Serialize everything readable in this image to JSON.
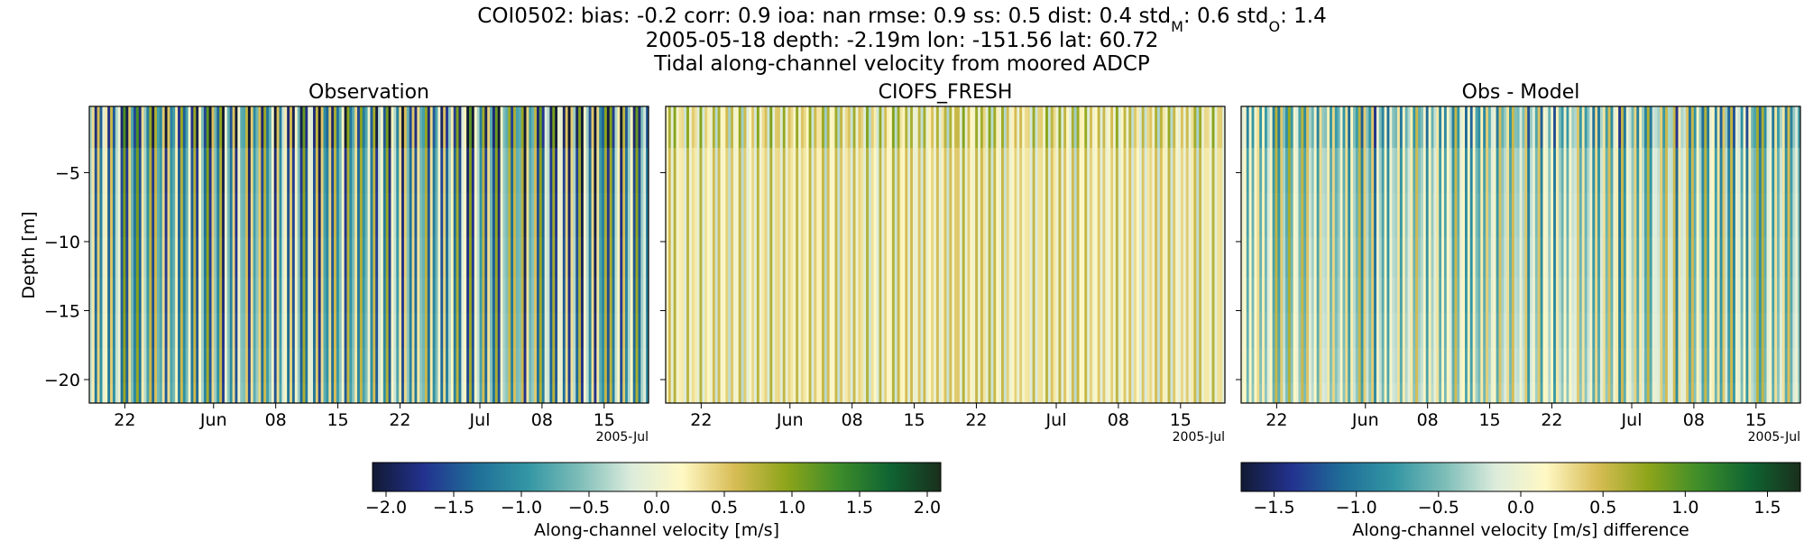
{
  "header": {
    "line1_prefix": "COI0502: bias: -0.2  corr: 0.9  ioa: nan  rmse: 0.9  ss: 0.5  dist: 0.4  std",
    "line1_sub_m": "M",
    "line1_mid": ": 0.6  std",
    "line1_sub_o": "O",
    "line1_end": ": 1.4",
    "line2": "2005-05-18 depth: -2.19m lon: -151.56 lat: 60.72",
    "line3": "Tidal along-channel velocity from moored ADCP"
  },
  "chart_data": [
    {
      "type": "heatmap",
      "title": "Observation",
      "ylabel": "Depth [m]",
      "xlabel": "",
      "x_range": [
        "2005-05-18",
        "2005-07-20"
      ],
      "y_range": [
        -21.7,
        -0.2
      ],
      "x_ticks": [
        "22",
        "Jun",
        "08",
        "15",
        "22",
        "Jul",
        "08",
        "15"
      ],
      "x_offset_label": "2005-Jul",
      "y_ticks": [
        "-5",
        "-10",
        "-15",
        "-20"
      ],
      "colormap": "delta",
      "vmin": -2.1,
      "vmax": 2.1,
      "colorbar": "colorbar-1"
    },
    {
      "type": "heatmap",
      "title": "CIOFS_FRESH",
      "ylabel": "",
      "xlabel": "",
      "x_range": [
        "2005-05-18",
        "2005-07-20"
      ],
      "y_range": [
        -21.7,
        -0.2
      ],
      "x_ticks": [
        "22",
        "Jun",
        "08",
        "15",
        "22",
        "Jul",
        "08",
        "15"
      ],
      "x_offset_label": "2005-Jul",
      "y_ticks": [],
      "colormap": "delta",
      "vmin": -2.1,
      "vmax": 2.1,
      "colorbar": "colorbar-1"
    },
    {
      "type": "heatmap",
      "title": "Obs - Model",
      "ylabel": "",
      "xlabel": "",
      "x_range": [
        "2005-05-18",
        "2005-07-20"
      ],
      "y_range": [
        -21.7,
        -0.2
      ],
      "x_ticks": [
        "22",
        "Jun",
        "08",
        "15",
        "22",
        "Jul",
        "08",
        "15"
      ],
      "x_offset_label": "2005-Jul",
      "y_ticks": [],
      "colormap": "delta",
      "vmin": -1.7,
      "vmax": 1.7,
      "colorbar": "colorbar-2"
    }
  ],
  "colorbars": [
    {
      "label": "Along-channel velocity [m/s]",
      "vmin": -2.1,
      "vmax": 2.1,
      "ticks": [
        -2.0,
        -1.5,
        -1.0,
        -0.5,
        0.0,
        0.5,
        1.0,
        1.5,
        2.0
      ],
      "tick_labels": [
        "−2.0",
        "−1.5",
        "−1.0",
        "−0.5",
        "0.0",
        "0.5",
        "1.0",
        "1.5",
        "2.0"
      ]
    },
    {
      "label": "Along-channel velocity [m/s] difference",
      "vmin": -1.7,
      "vmax": 1.7,
      "ticks": [
        -1.5,
        -1.0,
        -0.5,
        0.0,
        0.5,
        1.0,
        1.5
      ],
      "tick_labels": [
        "−1.5",
        "−1.0",
        "−0.5",
        "0.0",
        "0.5",
        "1.0",
        "1.5"
      ]
    }
  ],
  "colormap_stops": [
    "#111a34",
    "#23328f",
    "#1f6e98",
    "#3396a4",
    "#7dbdb8",
    "#dcecdc",
    "#fff8c4",
    "#d8bd56",
    "#8ea51a",
    "#3f8d2a",
    "#0f6532",
    "#1a2f1c"
  ]
}
